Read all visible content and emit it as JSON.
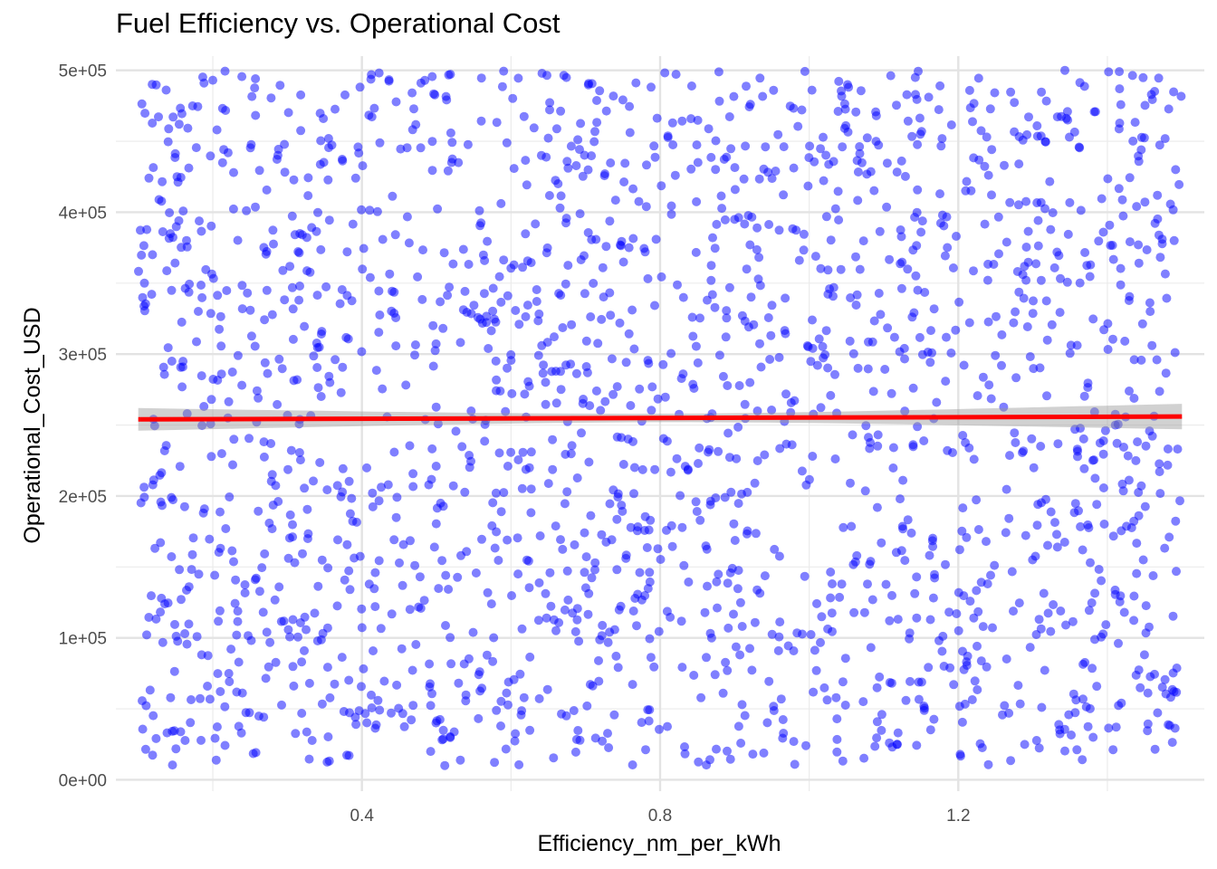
{
  "chart_data": {
    "type": "scatter",
    "title": "Fuel Efficiency vs. Operational Cost",
    "xlabel": "Efficiency_nm_per_kWh",
    "ylabel": "Operational_Cost_USD",
    "xlim": [
      0.07,
      1.53
    ],
    "ylim": [
      -8000,
      510000
    ],
    "x_ticks": [
      0.4,
      0.8,
      1.2
    ],
    "x_tick_labels": [
      "0.4",
      "0.8",
      "1.2"
    ],
    "x_minor_ticks": [
      0.2,
      0.6,
      1.0,
      1.4
    ],
    "y_ticks": [
      0,
      100000,
      200000,
      300000,
      400000,
      500000
    ],
    "y_tick_labels": [
      "0e+00",
      "1e+05",
      "2e+05",
      "3e+05",
      "4e+05",
      "5e+05"
    ],
    "y_minor_ticks": [
      50000,
      150000,
      250000,
      350000,
      450000
    ],
    "grid": true,
    "legend": "none",
    "point_color": "#0000ff",
    "point_opacity": 0.5,
    "point_count": 2000,
    "x_range_points": [
      0.1,
      1.5
    ],
    "y_range_points": [
      10000,
      500000
    ],
    "trend_line": {
      "method": "linear",
      "color": "#ff0000",
      "band_color": "#999999",
      "x": [
        0.1,
        1.5
      ],
      "y": [
        254000,
        256000
      ],
      "band_halfwidth_ends": [
        8000,
        9000
      ],
      "band_halfwidth_center": 3000
    }
  }
}
